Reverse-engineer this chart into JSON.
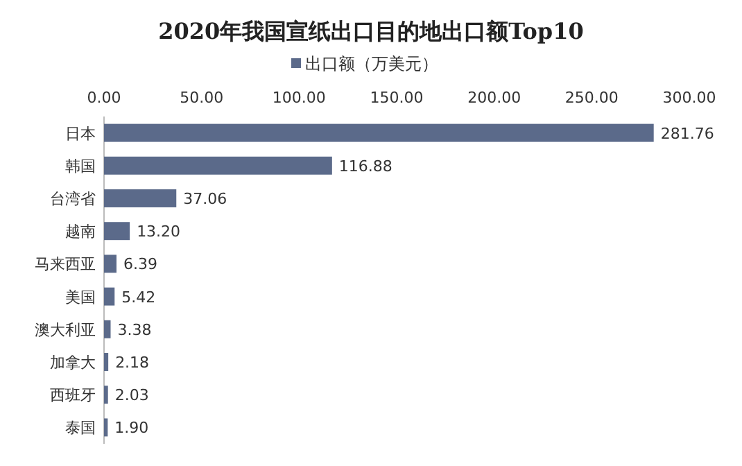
{
  "chart_data": {
    "type": "bar",
    "orientation": "horizontal",
    "title": "2020年我国宣纸出口目的地出口额Top10",
    "categories": [
      "日本",
      "韩国",
      "台湾省",
      "越南",
      "马来西亚",
      "美国",
      "澳大利亚",
      "加拿大",
      "西班牙",
      "泰国"
    ],
    "series": [
      {
        "name": "出口额（万美元）",
        "color": "#5b6a8a",
        "values": [
          281.76,
          116.88,
          37.06,
          13.2,
          6.39,
          5.42,
          3.38,
          2.18,
          2.03,
          1.9
        ],
        "value_labels": [
          "281.76",
          "116.88",
          "37.06",
          "13.20",
          "6.39",
          "5.42",
          "3.38",
          "2.18",
          "2.03",
          "1.90"
        ]
      }
    ],
    "xlim": [
      0,
      300
    ],
    "xticks": [
      {
        "value": 0,
        "label": "0.00"
      },
      {
        "value": 50,
        "label": "50.00"
      },
      {
        "value": 100,
        "label": "100.00"
      },
      {
        "value": 150,
        "label": "150.00"
      },
      {
        "value": 200,
        "label": "200.00"
      },
      {
        "value": 250,
        "label": "250.00"
      },
      {
        "value": 300,
        "label": "300.00"
      }
    ],
    "legend": "top"
  }
}
